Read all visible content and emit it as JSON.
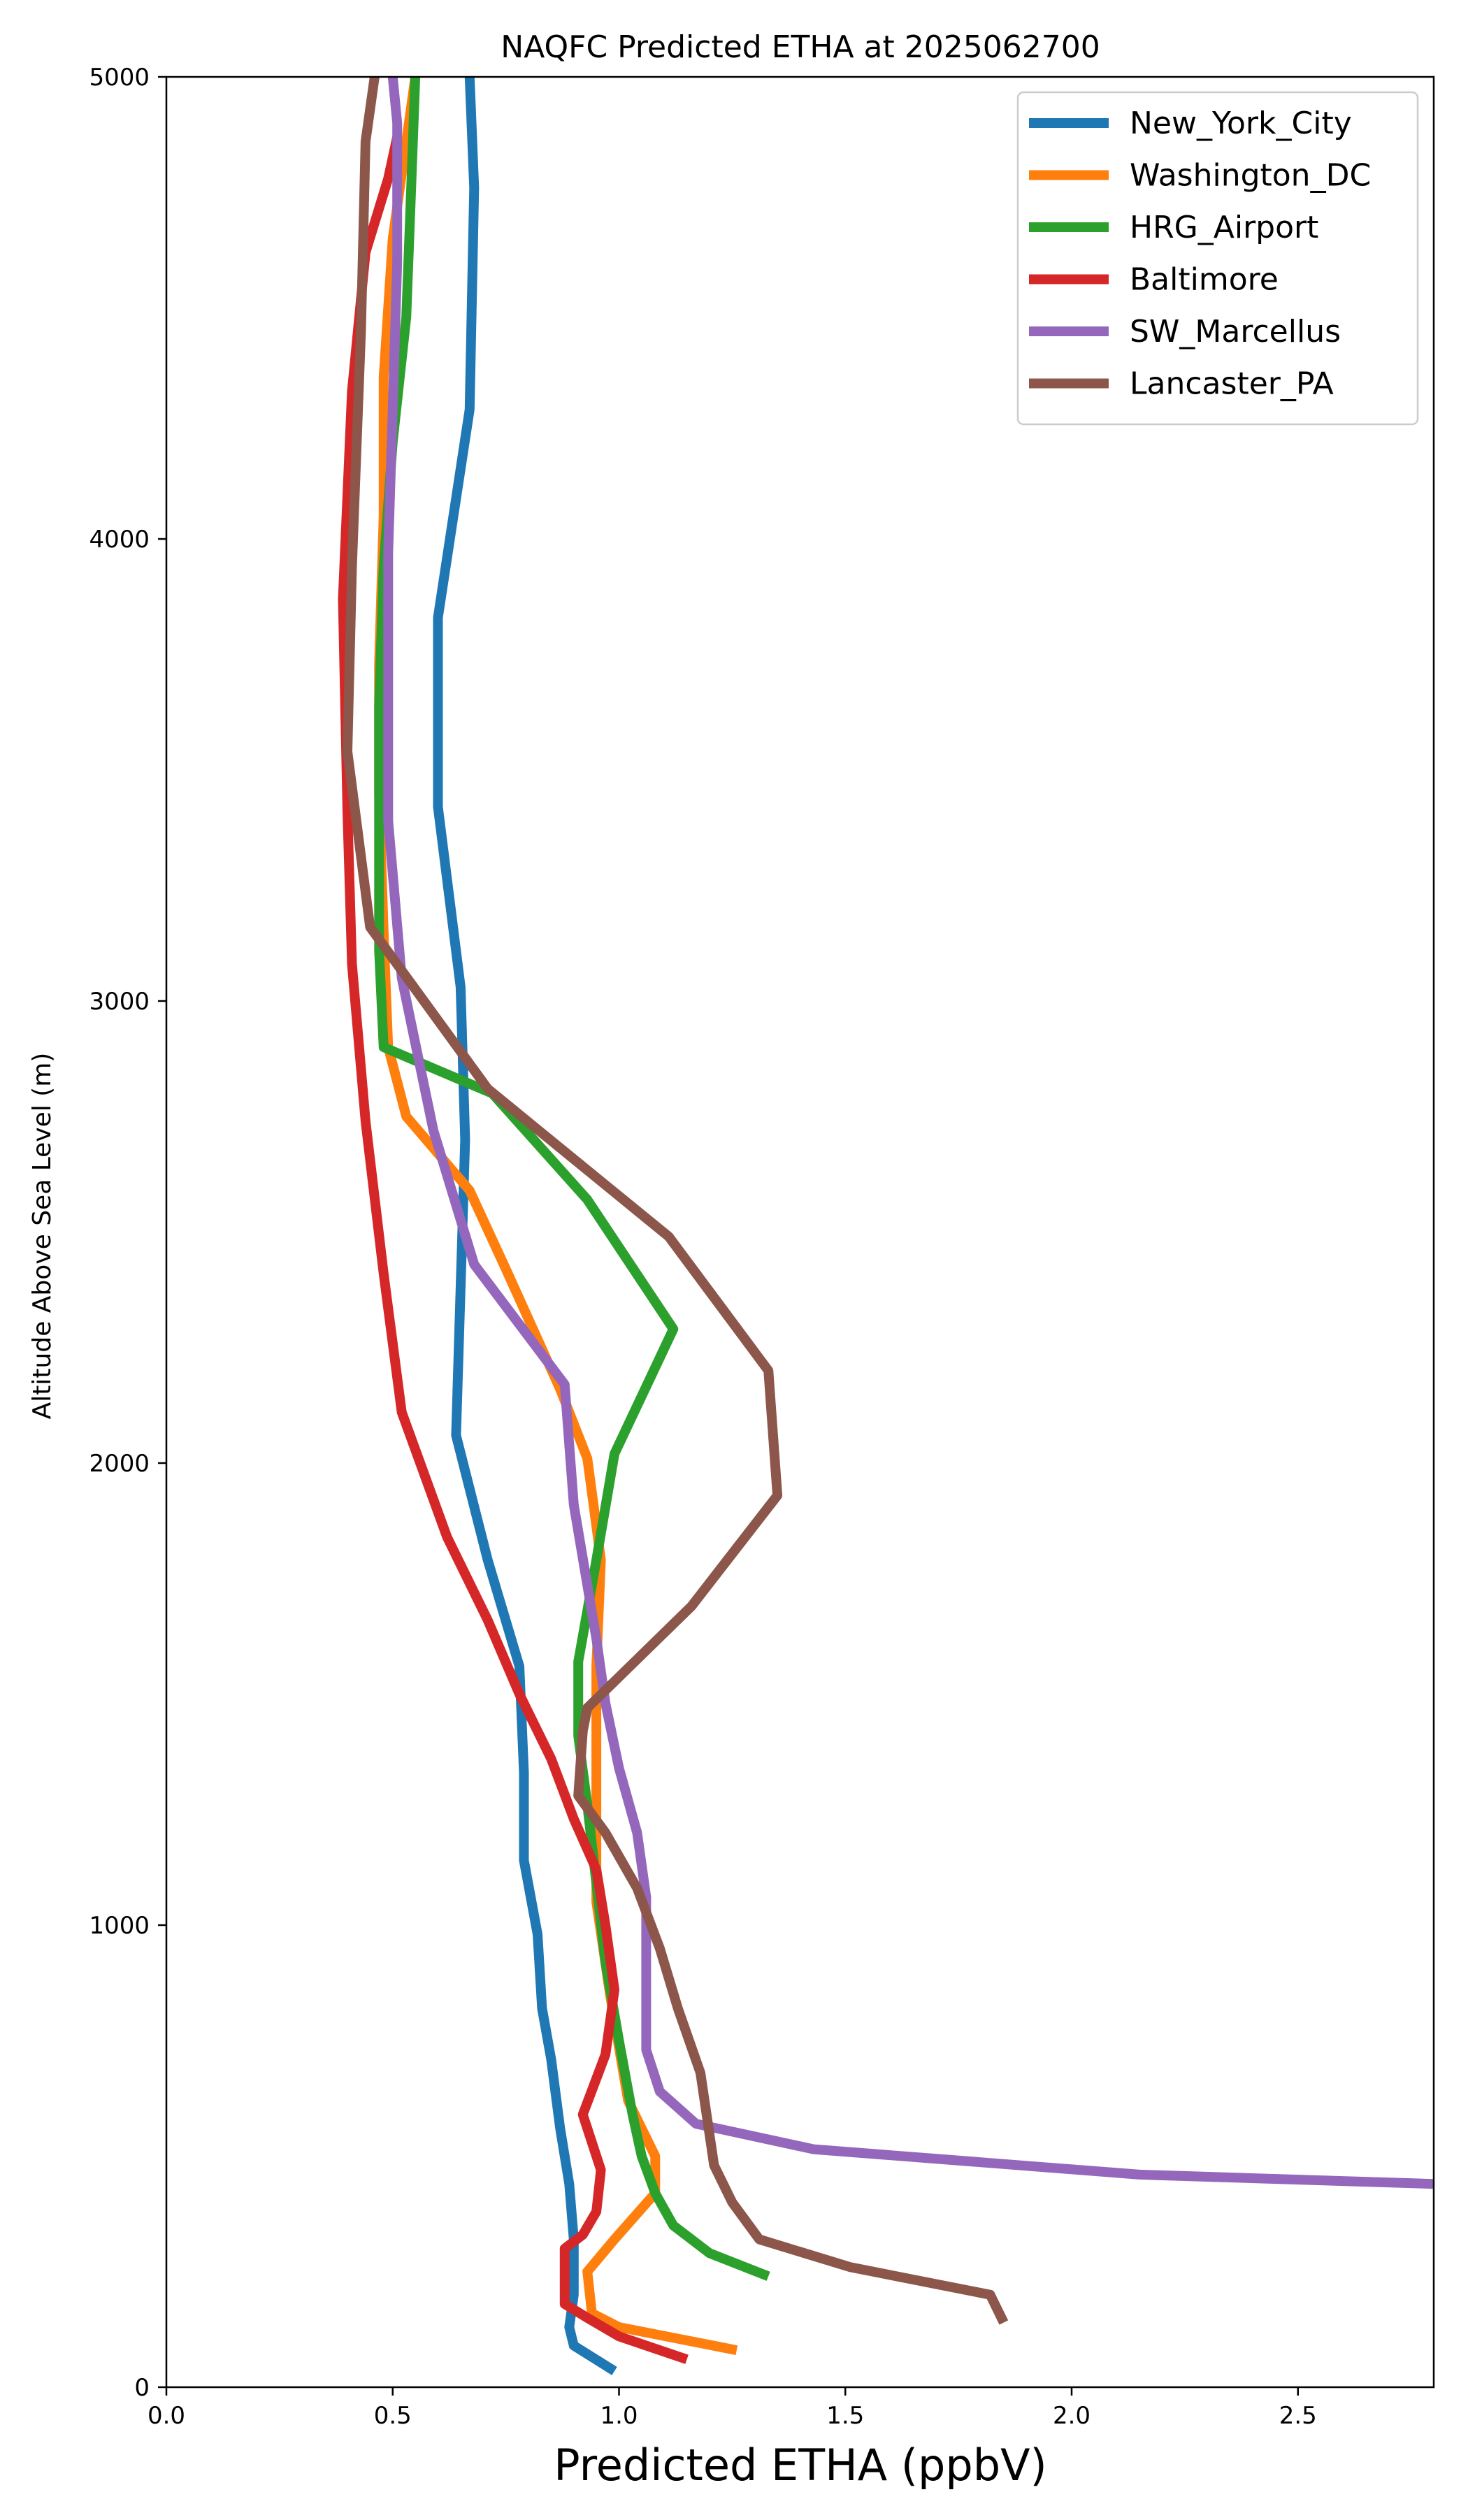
{
  "chart_data": {
    "type": "line",
    "title": "NAQFC Predicted ETHA at 2025062700",
    "xlabel": "Predicted ETHA (ppbV)",
    "ylabel": "Altitude Above Sea Level (m)",
    "xlim": [
      0,
      2.8
    ],
    "ylim": [
      0,
      5000
    ],
    "x_ticks": [
      "0.0",
      "0.5",
      "1.0",
      "1.5",
      "2.0",
      "2.5"
    ],
    "x_tick_values": [
      0,
      0.5,
      1.0,
      1.5,
      2.0,
      2.5
    ],
    "y_ticks": [
      "0",
      "1000",
      "2000",
      "3000",
      "4000",
      "5000"
    ],
    "y_tick_values": [
      0,
      1000,
      2000,
      3000,
      4000,
      5000
    ],
    "grid": false,
    "legend_position": "top-right",
    "series": [
      {
        "name": "New_York_City",
        "color": "#1f77b4",
        "points": [
          [
            0.99,
            35
          ],
          [
            0.9,
            90
          ],
          [
            0.89,
            130
          ],
          [
            0.9,
            200
          ],
          [
            0.9,
            320
          ],
          [
            0.89,
            440
          ],
          [
            0.87,
            560
          ],
          [
            0.85,
            710
          ],
          [
            0.83,
            820
          ],
          [
            0.82,
            980
          ],
          [
            0.79,
            1140
          ],
          [
            0.79,
            1330
          ],
          [
            0.78,
            1560
          ],
          [
            0.71,
            1790
          ],
          [
            0.64,
            2060
          ],
          [
            0.65,
            2380
          ],
          [
            0.66,
            2700
          ],
          [
            0.65,
            3030
          ],
          [
            0.6,
            3420
          ],
          [
            0.6,
            3830
          ],
          [
            0.67,
            4280
          ],
          [
            0.68,
            4760
          ],
          [
            0.67,
            5000
          ]
        ]
      },
      {
        "name": "Washington_DC",
        "color": "#ff7f0e",
        "points": [
          [
            1.26,
            80
          ],
          [
            1.0,
            130
          ],
          [
            0.94,
            160
          ],
          [
            0.93,
            250
          ],
          [
            0.99,
            320
          ],
          [
            1.08,
            420
          ],
          [
            1.08,
            500
          ],
          [
            1.02,
            620
          ],
          [
            0.98,
            850
          ],
          [
            0.95,
            1050
          ],
          [
            0.95,
            1310
          ],
          [
            0.95,
            1560
          ],
          [
            0.96,
            1790
          ],
          [
            0.93,
            2010
          ],
          [
            0.87,
            2160
          ],
          [
            0.75,
            2420
          ],
          [
            0.67,
            2590
          ],
          [
            0.53,
            2750
          ],
          [
            0.49,
            2900
          ],
          [
            0.48,
            3150
          ],
          [
            0.47,
            3450
          ],
          [
            0.47,
            3730
          ],
          [
            0.48,
            4050
          ],
          [
            0.48,
            4350
          ],
          [
            0.5,
            4650
          ],
          [
            0.55,
            5000
          ]
        ]
      },
      {
        "name": "HRG_Airport",
        "color": "#2ca02c",
        "points": [
          [
            1.33,
            240
          ],
          [
            1.2,
            290
          ],
          [
            1.12,
            350
          ],
          [
            1.08,
            420
          ],
          [
            1.05,
            500
          ],
          [
            1.03,
            590
          ],
          [
            1.0,
            750
          ],
          [
            0.97,
            920
          ],
          [
            0.95,
            1090
          ],
          [
            0.93,
            1260
          ],
          [
            0.91,
            1410
          ],
          [
            0.91,
            1570
          ],
          [
            0.95,
            1790
          ],
          [
            0.99,
            2020
          ],
          [
            1.12,
            2290
          ],
          [
            0.93,
            2570
          ],
          [
            0.72,
            2800
          ],
          [
            0.48,
            2900
          ],
          [
            0.47,
            3110
          ],
          [
            0.47,
            3380
          ],
          [
            0.47,
            3640
          ],
          [
            0.48,
            3940
          ],
          [
            0.5,
            4210
          ],
          [
            0.53,
            4480
          ],
          [
            0.54,
            4740
          ],
          [
            0.55,
            5000
          ]
        ]
      },
      {
        "name": "Baltimore",
        "color": "#d62728",
        "points": [
          [
            1.15,
            60
          ],
          [
            1.0,
            110
          ],
          [
            0.93,
            150
          ],
          [
            0.88,
            180
          ],
          [
            0.88,
            240
          ],
          [
            0.88,
            300
          ],
          [
            0.92,
            330
          ],
          [
            0.95,
            380
          ],
          [
            0.96,
            470
          ],
          [
            0.92,
            590
          ],
          [
            0.97,
            720
          ],
          [
            0.99,
            860
          ],
          [
            0.97,
            1000
          ],
          [
            0.95,
            1120
          ],
          [
            0.9,
            1230
          ],
          [
            0.85,
            1360
          ],
          [
            0.78,
            1500
          ],
          [
            0.71,
            1660
          ],
          [
            0.62,
            1840
          ],
          [
            0.52,
            2110
          ],
          [
            0.48,
            2410
          ],
          [
            0.44,
            2740
          ],
          [
            0.41,
            3080
          ],
          [
            0.4,
            3410
          ],
          [
            0.39,
            3870
          ],
          [
            0.41,
            4320
          ],
          [
            0.44,
            4620
          ],
          [
            0.49,
            4780
          ],
          [
            0.51,
            4870
          ]
        ]
      },
      {
        "name": "SW_Marcellus",
        "color": "#9467bd",
        "points": [
          [
            2.8,
            440
          ],
          [
            2.15,
            460
          ],
          [
            1.43,
            515
          ],
          [
            1.17,
            570
          ],
          [
            1.09,
            640
          ],
          [
            1.06,
            730
          ],
          [
            1.06,
            860
          ],
          [
            1.06,
            1060
          ],
          [
            1.04,
            1200
          ],
          [
            1.0,
            1340
          ],
          [
            0.97,
            1480
          ],
          [
            0.95,
            1620
          ],
          [
            0.9,
            1910
          ],
          [
            0.88,
            2170
          ],
          [
            0.68,
            2430
          ],
          [
            0.59,
            2720
          ],
          [
            0.52,
            3050
          ],
          [
            0.49,
            3390
          ],
          [
            0.49,
            3700
          ],
          [
            0.49,
            3970
          ],
          [
            0.5,
            4280
          ],
          [
            0.51,
            4600
          ],
          [
            0.51,
            4900
          ],
          [
            0.5,
            5000
          ]
        ]
      },
      {
        "name": "Lancaster_PA",
        "color": "#8c564b",
        "points": [
          [
            1.85,
            140
          ],
          [
            1.82,
            200
          ],
          [
            1.51,
            260
          ],
          [
            1.31,
            320
          ],
          [
            1.25,
            400
          ],
          [
            1.21,
            480
          ],
          [
            1.18,
            680
          ],
          [
            1.13,
            820
          ],
          [
            1.09,
            950
          ],
          [
            1.04,
            1080
          ],
          [
            0.97,
            1200
          ],
          [
            0.91,
            1280
          ],
          [
            0.92,
            1420
          ],
          [
            0.93,
            1470
          ],
          [
            1.16,
            1690
          ],
          [
            1.35,
            1930
          ],
          [
            1.33,
            2200
          ],
          [
            1.11,
            2490
          ],
          [
            0.71,
            2810
          ],
          [
            0.45,
            3160
          ],
          [
            0.4,
            3540
          ],
          [
            0.41,
            3940
          ],
          [
            0.43,
            4450
          ],
          [
            0.44,
            4860
          ],
          [
            0.46,
            5000
          ]
        ]
      }
    ]
  }
}
